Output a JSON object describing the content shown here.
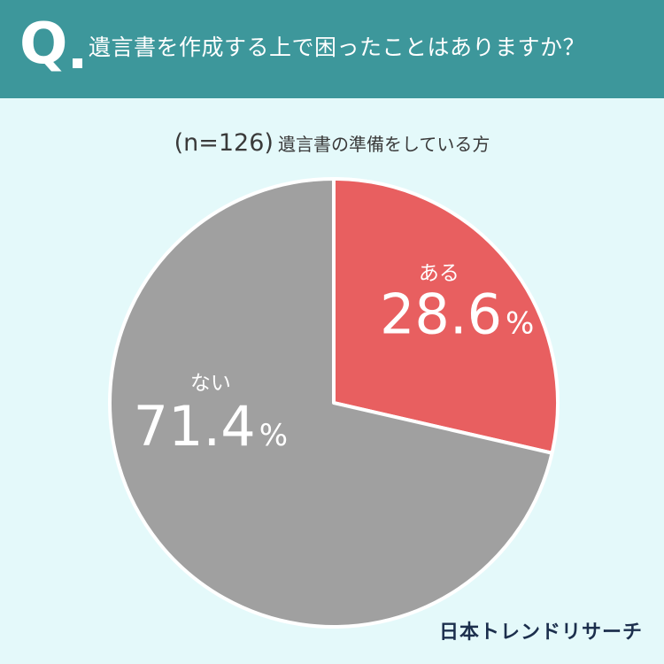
{
  "header": {
    "q_letter": "Q",
    "question": "遺言書を作成する上で困ったことはありますか？"
  },
  "subtitle": {
    "sample": "(n=126)",
    "group": "遺言書の準備をしている方"
  },
  "chart_data": {
    "type": "pie",
    "title": "遺言書を作成する上で困ったことはありますか？",
    "subtitle": "(n=126) 遺言書の準備をしている方",
    "slices": [
      {
        "label": "ある",
        "value": 28.6,
        "display": "28.6",
        "unit": "%",
        "color": "#e85f60"
      },
      {
        "label": "ない",
        "value": 71.4,
        "display": "71.4",
        "unit": "%",
        "color": "#a0a0a0"
      }
    ],
    "start_angle": "12 o'clock",
    "direction": "clockwise",
    "legend": "none"
  },
  "brand": "日本トレンドリサーチ"
}
